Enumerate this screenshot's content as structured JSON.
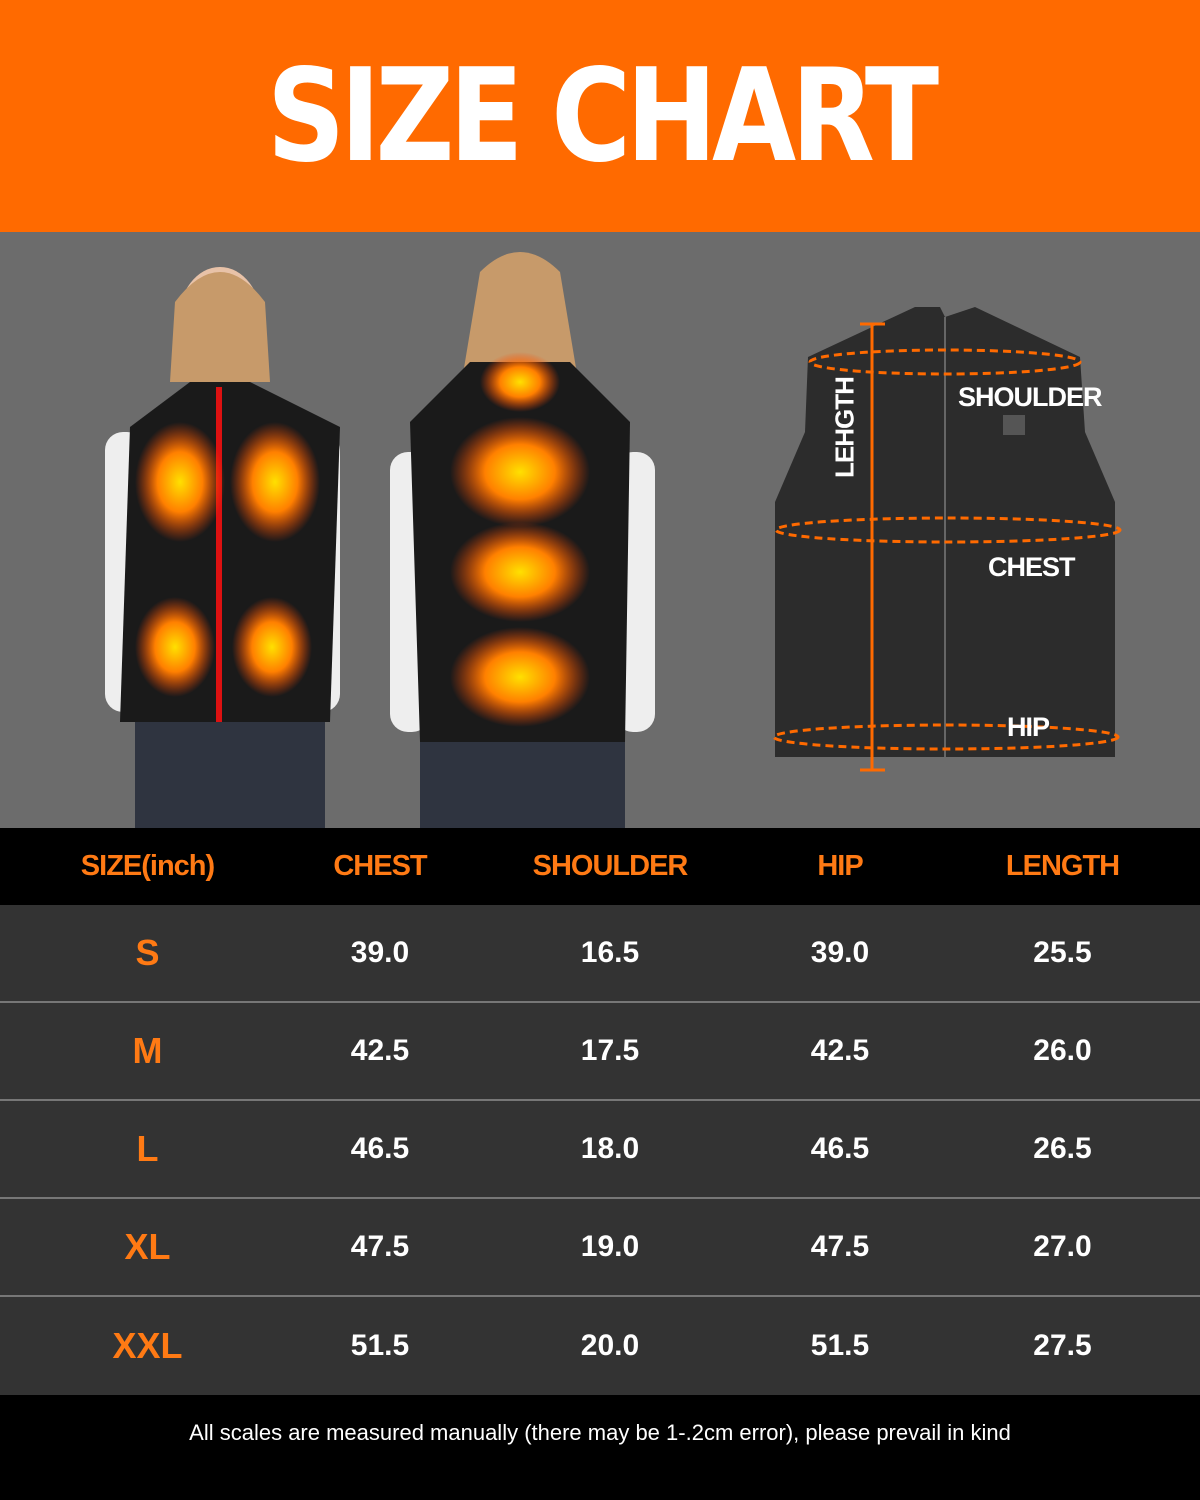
{
  "title": "SIZE CHART",
  "colors": {
    "accent": "#ff6a00",
    "header_text": "#ff7a14",
    "row_bg": "#333333",
    "photo_bg": "#6c6c6c"
  },
  "diagram": {
    "shoulder": "SHOULDER",
    "chest": "CHEST",
    "hip": "HIP",
    "length": "LEHGTH"
  },
  "table": {
    "headers": [
      "SIZE(inch)",
      "CHEST",
      "SHOULDER",
      "HIP",
      "LENGTH"
    ],
    "rows": [
      [
        "S",
        "39.0",
        "16.5",
        "39.0",
        "25.5"
      ],
      [
        "M",
        "42.5",
        "17.5",
        "42.5",
        "26.0"
      ],
      [
        "L",
        "46.5",
        "18.0",
        "46.5",
        "26.5"
      ],
      [
        "XL",
        "47.5",
        "19.0",
        "47.5",
        "27.0"
      ],
      [
        "XXL",
        "51.5",
        "20.0",
        "51.5",
        "27.5"
      ]
    ]
  },
  "footer": "All scales are measured manually (there may be 1-.2cm error), please prevail in kind"
}
